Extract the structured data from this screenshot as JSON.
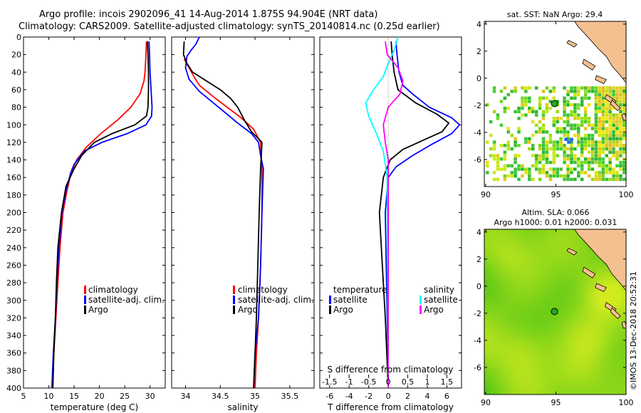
{
  "title": {
    "line1": "Argo profile: incois 2902096_41 14-Aug-2014 1.875S 94.904E (NRT data)",
    "line2": "Climatology: CARS2009. Satellite-adjusted climatology: synTS_20140814.nc (0.25d earlier)"
  },
  "watermark": "©IMOS 13-Dec-2018 20:52:31",
  "depth_ticks": [
    0,
    20,
    40,
    60,
    80,
    100,
    120,
    140,
    160,
    180,
    200,
    220,
    240,
    260,
    280,
    300,
    320,
    340,
    360,
    380,
    400
  ],
  "colors": {
    "climatology": "#ff0000",
    "satellite": "#0000ff",
    "argo": "#000000",
    "sal_satellite": "#00ffff",
    "sal_argo": "#ff00ff"
  },
  "chart_data": [
    {
      "type": "line",
      "id": "temperature",
      "xlabel": "temperature (deg C)",
      "ylabel": "depth",
      "xlim": [
        5,
        33
      ],
      "ylim": [
        400,
        0
      ],
      "xticks": [
        5,
        10,
        15,
        20,
        25,
        30
      ],
      "legend": [
        "climatology",
        "satellite-adj. clim.",
        "Argo"
      ],
      "legend_position": "lower-right",
      "series": [
        {
          "name": "climatology",
          "color": "#ff0000",
          "points": [
            [
              29.3,
              5
            ],
            [
              29.2,
              20
            ],
            [
              29.0,
              40
            ],
            [
              28.8,
              50
            ],
            [
              28.0,
              65
            ],
            [
              26.2,
              80
            ],
            [
              23.5,
              95
            ],
            [
              20.3,
              110
            ],
            [
              17.5,
              125
            ],
            [
              15.5,
              140
            ],
            [
              14.4,
              155
            ],
            [
              13.6,
              175
            ],
            [
              12.8,
              200
            ],
            [
              12.2,
              240
            ],
            [
              11.8,
              280
            ],
            [
              11.4,
              320
            ],
            [
              11.0,
              360
            ],
            [
              10.7,
              400
            ]
          ]
        },
        {
          "name": "satellite-adj. clim.",
          "color": "#0000ff",
          "points": [
            [
              29.8,
              5
            ],
            [
              29.9,
              20
            ],
            [
              30.0,
              40
            ],
            [
              30.2,
              60
            ],
            [
              30.4,
              80
            ],
            [
              30.3,
              90
            ],
            [
              29.2,
              100
            ],
            [
              25.5,
              110
            ],
            [
              20.5,
              120
            ],
            [
              17.0,
              130
            ],
            [
              15.0,
              145
            ],
            [
              14.3,
              155
            ],
            [
              13.4,
              175
            ],
            [
              12.6,
              200
            ],
            [
              12.0,
              240
            ],
            [
              11.6,
              280
            ],
            [
              11.3,
              320
            ],
            [
              10.9,
              360
            ],
            [
              10.6,
              400
            ]
          ]
        },
        {
          "name": "Argo",
          "color": "#000000",
          "points": [
            [
              29.5,
              5
            ],
            [
              29.6,
              20
            ],
            [
              29.7,
              40
            ],
            [
              29.7,
              60
            ],
            [
              29.6,
              80
            ],
            [
              29.3,
              90
            ],
            [
              27.0,
              100
            ],
            [
              22.5,
              110
            ],
            [
              19.0,
              120
            ],
            [
              16.5,
              135
            ],
            [
              15.0,
              150
            ],
            [
              13.4,
              170
            ],
            [
              12.5,
              200
            ],
            [
              11.8,
              240
            ],
            [
              11.5,
              280
            ],
            [
              11.3,
              320
            ],
            [
              11.0,
              360
            ],
            [
              10.8,
              400
            ]
          ]
        }
      ]
    },
    {
      "type": "line",
      "id": "salinity",
      "xlabel": "salinity",
      "ylabel": "depth",
      "xlim": [
        33.8,
        35.85
      ],
      "ylim": [
        400,
        0
      ],
      "xticks": [
        34,
        34.5,
        35,
        35.5
      ],
      "legend": [
        "climatology",
        "satellite-adj. clim.",
        "Argo"
      ],
      "legend_position": "lower-right",
      "series": [
        {
          "name": "climatology",
          "color": "#ff0000",
          "points": [
            [
              33.98,
              25
            ],
            [
              34.05,
              35
            ],
            [
              34.12,
              45
            ],
            [
              34.2,
              55
            ],
            [
              34.4,
              68
            ],
            [
              34.6,
              80
            ],
            [
              34.8,
              92
            ],
            [
              34.98,
              105
            ],
            [
              35.08,
              120
            ],
            [
              35.1,
              150
            ],
            [
              35.1,
              200
            ],
            [
              35.08,
              260
            ],
            [
              35.05,
              320
            ],
            [
              35.02,
              360
            ],
            [
              35.0,
              400
            ]
          ]
        },
        {
          "name": "satellite-adj. clim.",
          "color": "#0000ff",
          "points": [
            [
              34.2,
              0
            ],
            [
              34.15,
              8
            ],
            [
              34.08,
              15
            ],
            [
              34.02,
              22
            ],
            [
              34.0,
              35
            ],
            [
              34.05,
              48
            ],
            [
              34.2,
              62
            ],
            [
              34.4,
              75
            ],
            [
              34.6,
              88
            ],
            [
              34.75,
              98
            ],
            [
              34.95,
              110
            ],
            [
              35.05,
              120
            ],
            [
              35.08,
              135
            ],
            [
              35.12,
              150
            ],
            [
              35.1,
              200
            ],
            [
              35.08,
              260
            ],
            [
              35.05,
              320
            ],
            [
              35.0,
              360
            ],
            [
              34.98,
              400
            ]
          ]
        },
        {
          "name": "Argo",
          "color": "#000000",
          "points": [
            [
              33.98,
              5
            ],
            [
              33.97,
              20
            ],
            [
              34.02,
              30
            ],
            [
              34.1,
              40
            ],
            [
              34.3,
              50
            ],
            [
              34.5,
              60
            ],
            [
              34.65,
              70
            ],
            [
              34.75,
              80
            ],
            [
              34.85,
              95
            ],
            [
              34.95,
              108
            ],
            [
              35.1,
              120
            ],
            [
              35.08,
              150
            ],
            [
              35.06,
              200
            ],
            [
              35.04,
              260
            ],
            [
              35.02,
              320
            ],
            [
              35.0,
              360
            ],
            [
              34.98,
              400
            ]
          ]
        }
      ]
    },
    {
      "type": "line",
      "id": "differences",
      "xlabel": "T difference from climatology",
      "xlabel_top": "S difference from climatology",
      "ylabel": "depth",
      "xlim": [
        -7,
        7.5
      ],
      "ylim": [
        400,
        0
      ],
      "xticks": [
        -6,
        -4,
        -2,
        0,
        2,
        4,
        6
      ],
      "top_xlim": [
        -1.75,
        1.875
      ],
      "top_xticks": [
        -1.5,
        -1,
        -0.5,
        0,
        0.5,
        1,
        1.5
      ],
      "top_xtick_labels": [
        "-1.5",
        "-1",
        "-0.5",
        "0",
        "0.5",
        "1",
        "1.5"
      ],
      "legend_left": {
        "header": "temperature",
        "items": [
          "satellite",
          "Argo"
        ]
      },
      "legend_right": {
        "header": "salinity",
        "items": [
          "satellite",
          "Argo"
        ]
      },
      "series": [
        {
          "name": "temperature satellite",
          "color": "#0000ff",
          "points": [
            [
              0.8,
              5
            ],
            [
              0.9,
              20
            ],
            [
              1.1,
              40
            ],
            [
              1.5,
              55
            ],
            [
              2.5,
              65
            ],
            [
              4.2,
              80
            ],
            [
              6.5,
              92
            ],
            [
              7.3,
              100
            ],
            [
              6.5,
              110
            ],
            [
              4.5,
              122
            ],
            [
              2.5,
              135
            ],
            [
              0.8,
              148
            ],
            [
              0,
              160
            ],
            [
              -0.3,
              200
            ],
            [
              -0.2,
              260
            ],
            [
              -0.1,
              320
            ],
            [
              0,
              400
            ]
          ]
        },
        {
          "name": "temperature Argo",
          "color": "#000000",
          "points": [
            [
              0.3,
              5
            ],
            [
              0.4,
              20
            ],
            [
              0.6,
              40
            ],
            [
              1.0,
              60
            ],
            [
              2.8,
              75
            ],
            [
              5.0,
              88
            ],
            [
              6.2,
              98
            ],
            [
              5.5,
              108
            ],
            [
              3.5,
              118
            ],
            [
              1.5,
              128
            ],
            [
              0.2,
              140
            ],
            [
              -0.5,
              160
            ],
            [
              -0.9,
              200
            ],
            [
              -0.6,
              260
            ],
            [
              -0.3,
              320
            ],
            [
              0,
              400
            ]
          ]
        },
        {
          "name": "salinity satellite",
          "color": "#00ffff",
          "points": [
            [
              1.0,
              0
            ],
            [
              0.6,
              15
            ],
            [
              0,
              30
            ],
            [
              -0.5,
              45
            ],
            [
              -1.5,
              60
            ],
            [
              -2.3,
              75
            ],
            [
              -2.0,
              90
            ],
            [
              -1.2,
              110
            ],
            [
              -0.5,
              130
            ],
            [
              -0.1,
              160
            ],
            [
              0,
              400
            ]
          ]
        },
        {
          "name": "salinity Argo",
          "color": "#ff00ff",
          "points": [
            [
              -0.3,
              5
            ],
            [
              -0.1,
              20
            ],
            [
              1.0,
              35
            ],
            [
              1.5,
              50
            ],
            [
              1.2,
              65
            ],
            [
              0,
              80
            ],
            [
              -0.5,
              100
            ],
            [
              -0.3,
              120
            ],
            [
              0,
              140
            ],
            [
              0,
              400
            ]
          ]
        }
      ]
    },
    {
      "type": "heatmap",
      "id": "map-sst",
      "title": "sat. SST: NaN Argo: 29.4",
      "xlim": [
        89.9,
        100
      ],
      "ylim": [
        -8,
        4.2
      ],
      "xticks": [
        90,
        95,
        100
      ],
      "yticks": [
        4,
        2,
        0,
        -2,
        -4,
        -6
      ],
      "argo_marker": [
        94.904,
        -1.875
      ]
    },
    {
      "type": "heatmap",
      "id": "map-sla",
      "title_line1": "Altim. SLA: 0.066",
      "title_line2": "Argo h1000: 0.01 h2000: 0.031",
      "xlim": [
        89.9,
        100
      ],
      "ylim": [
        -8,
        4.2
      ],
      "xticks": [
        90,
        95,
        100
      ],
      "yticks": [
        4,
        2,
        0,
        -2,
        -4,
        -6
      ],
      "argo_marker": [
        94.904,
        -1.875
      ]
    }
  ]
}
